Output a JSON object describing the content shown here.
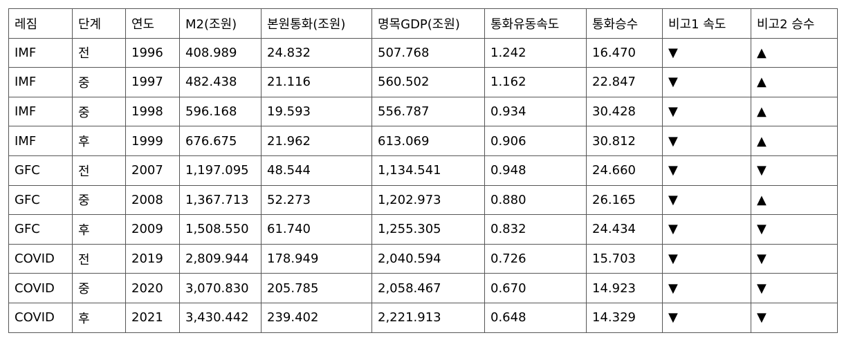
{
  "table": {
    "header": [
      "레짐",
      "단계",
      "연도",
      "M2(조원)",
      "본원통화(조원)",
      "명목GDP(조원)",
      "통화유동속도",
      "통화승수",
      "비고1 속도",
      "비고2 승수"
    ],
    "rows": [
      [
        "IMF",
        "전",
        "1996",
        "408.989",
        "24.832",
        "507.768",
        "1.242",
        "16.470",
        "▼",
        "▲"
      ],
      [
        "IMF",
        "중",
        "1997",
        "482.438",
        "21.116",
        "560.502",
        "1.162",
        "22.847",
        "▼",
        "▲"
      ],
      [
        "IMF",
        "중",
        "1998",
        "596.168",
        "19.593",
        "556.787",
        "0.934",
        "30.428",
        "▼",
        "▲"
      ],
      [
        "IMF",
        "후",
        "1999",
        "676.675",
        "21.962",
        "613.069",
        "0.906",
        "30.812",
        "▼",
        "▲"
      ],
      [
        "GFC",
        "전",
        "2007",
        "1,197.095",
        "48.544",
        "1,134.541",
        "0.948",
        "24.660",
        "▼",
        "▼"
      ],
      [
        "GFC",
        "중",
        "2008",
        "1,367.713",
        "52.273",
        "1,202.973",
        "0.880",
        "26.165",
        "▼",
        "▲"
      ],
      [
        "GFC",
        "후",
        "2009",
        "1,508.550",
        "61.740",
        "1,255.305",
        "0.832",
        "24.434",
        "▼",
        "▼"
      ],
      [
        "COVID",
        "전",
        "2019",
        "2,809.944",
        "178.949",
        "2,040.594",
        "0.726",
        "15.703",
        "▼",
        "▼"
      ],
      [
        "COVID",
        "중",
        "2020",
        "3,070.830",
        "205.785",
        "2,058.467",
        "0.670",
        "14.923",
        "▼",
        "▼"
      ],
      [
        "COVID",
        "후",
        "2021",
        "3,430.442",
        "239.402",
        "2,221.913",
        "0.648",
        "14.329",
        "▼",
        "▼"
      ]
    ]
  }
}
